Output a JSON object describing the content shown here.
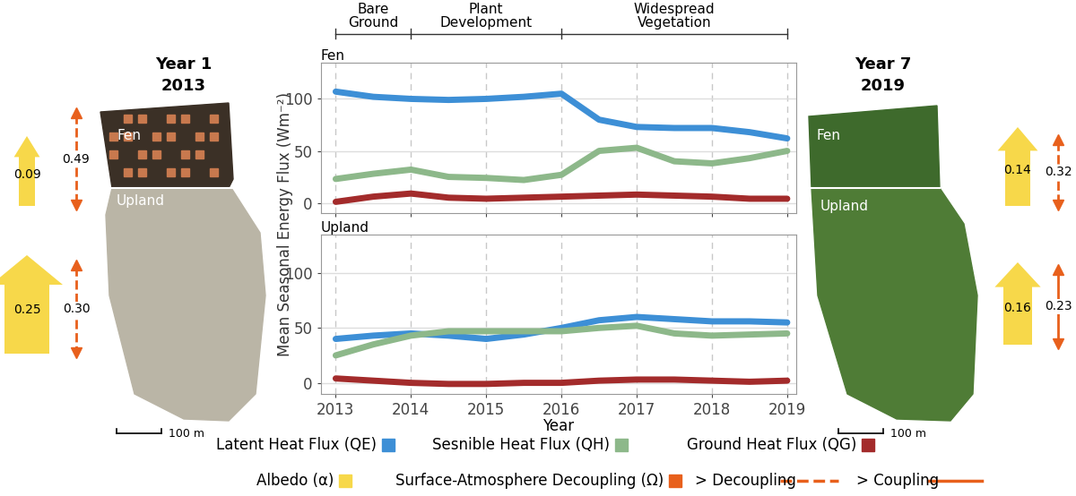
{
  "chart_data": [
    {
      "type": "line",
      "title": "Fen",
      "x": [
        2013,
        2013.5,
        2014,
        2014.5,
        2015,
        2015.5,
        2016,
        2016.5,
        2017,
        2017.5,
        2018,
        2018.5,
        2019
      ],
      "series": [
        {
          "name": "Latent Heat Flux (QE)",
          "color": "#3d8fd6",
          "values": [
            107,
            102,
            100,
            99,
            100,
            102,
            105,
            80,
            73,
            72,
            72,
            68,
            62
          ]
        },
        {
          "name": "Sesnible Heat Flux (QH)",
          "color": "#8db88a",
          "values": [
            23,
            28,
            32,
            25,
            24,
            22,
            27,
            50,
            53,
            40,
            38,
            43,
            50
          ]
        },
        {
          "name": "Ground Heat Flux (QG)",
          "color": "#a32b2b",
          "values": [
            1,
            6,
            9,
            5,
            4,
            5,
            6,
            7,
            8,
            7,
            6,
            4,
            4
          ]
        }
      ],
      "xlim": [
        2012.8,
        2019.12
      ],
      "xticks": [
        2013,
        2014,
        2015,
        2016,
        2017,
        2018,
        2019
      ],
      "ylim": [
        -10,
        135
      ],
      "yticks": [
        0,
        50,
        100
      ],
      "grid": true,
      "tick_labels": "y"
    },
    {
      "type": "line",
      "title": "Upland",
      "x_label": "Year",
      "x": [
        2013,
        2013.5,
        2014,
        2014.5,
        2015,
        2015.5,
        2016,
        2016.5,
        2017,
        2017.5,
        2018,
        2018.5,
        2019
      ],
      "series": [
        {
          "name": "Latent Heat Flux (QE)",
          "color": "#3d8fd6",
          "values": [
            40,
            43,
            45,
            43,
            40,
            44,
            50,
            57,
            60,
            58,
            56,
            56,
            55
          ]
        },
        {
          "name": "Sesnible Heat Flux (QH)",
          "color": "#8db88a",
          "values": [
            25,
            35,
            43,
            47,
            47,
            47,
            47,
            50,
            52,
            45,
            43,
            44,
            45
          ]
        },
        {
          "name": "Ground Heat Flux (QG)",
          "color": "#a32b2b",
          "values": [
            4,
            2,
            0,
            -1,
            -1,
            0,
            0,
            2,
            3,
            3,
            2,
            1,
            2
          ]
        }
      ],
      "xlim": [
        2012.8,
        2019.12
      ],
      "xticks": [
        2013,
        2014,
        2015,
        2016,
        2017,
        2018,
        2019
      ],
      "ylim": [
        -10,
        135
      ],
      "yticks": [
        0,
        50,
        100
      ],
      "grid": true
    }
  ],
  "y_label": "Mean Seasonal Energy Flux (Wm⁻²)",
  "phases": [
    {
      "label": "Bare Ground",
      "start": 2013,
      "end": 2014
    },
    {
      "label": "Plant Development",
      "start": 2014,
      "end": 2016
    },
    {
      "label": "Widespread Vegetation",
      "start": 2016,
      "end": 2019
    }
  ],
  "panels": [
    {
      "year_label": "Year 1",
      "year": 2013,
      "scale": "100 m",
      "sites": [
        {
          "name": "Fen",
          "albedo": 0.09,
          "decoupling": 0.49,
          "line_style": "dashed"
        },
        {
          "name": "Upland",
          "albedo": 0.25,
          "decoupling": {
            "value": 0.3,
            "label": "0.30"
          },
          "line_style": "dashed"
        }
      ]
    },
    {
      "year_label": "Year 7",
      "year": 2019,
      "scale": "100 m",
      "sites": [
        {
          "name": "Fen",
          "albedo": 0.14,
          "decoupling": 0.32,
          "line_style": "dashed"
        },
        {
          "name": "Upland",
          "albedo": 0.16,
          "decoupling": 0.23,
          "line_style": "solid"
        }
      ]
    }
  ],
  "legend": {
    "albedo": {
      "label": "Albedo (α)",
      "color": "#f7d84a"
    },
    "decoupling": {
      "label": "Surface-Atmosphere Decoupling (Ω)",
      "color": "#e8601c"
    },
    "styles": [
      {
        "label": "> Decoupling",
        "line_style": "dashed"
      },
      {
        "label": "> Coupling",
        "line_style": "solid"
      }
    ]
  }
}
